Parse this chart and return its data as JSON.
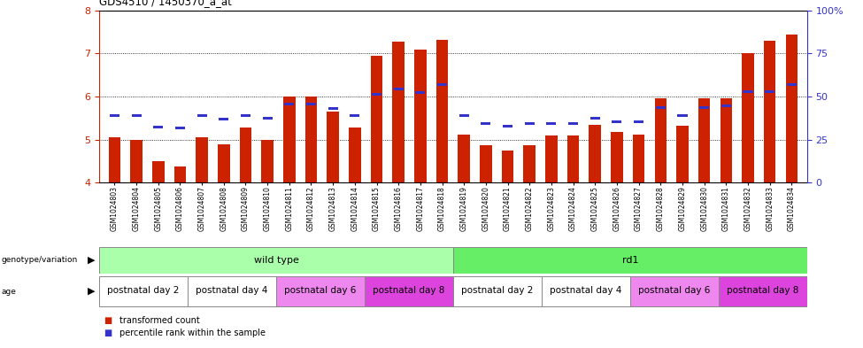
{
  "title": "GDS4510 / 1450370_a_at",
  "samples": [
    "GSM1024803",
    "GSM1024804",
    "GSM1024805",
    "GSM1024806",
    "GSM1024807",
    "GSM1024808",
    "GSM1024809",
    "GSM1024810",
    "GSM1024811",
    "GSM1024812",
    "GSM1024813",
    "GSM1024814",
    "GSM1024815",
    "GSM1024816",
    "GSM1024817",
    "GSM1024818",
    "GSM1024819",
    "GSM1024820",
    "GSM1024821",
    "GSM1024822",
    "GSM1024823",
    "GSM1024824",
    "GSM1024825",
    "GSM1024826",
    "GSM1024827",
    "GSM1024828",
    "GSM1024829",
    "GSM1024830",
    "GSM1024831",
    "GSM1024832",
    "GSM1024833",
    "GSM1024834"
  ],
  "bar_values": [
    5.05,
    5.0,
    4.5,
    4.38,
    5.05,
    4.9,
    5.28,
    5.0,
    6.0,
    6.0,
    5.65,
    5.28,
    6.95,
    7.28,
    7.1,
    7.32,
    5.12,
    4.88,
    4.75,
    4.88,
    5.1,
    5.1,
    5.35,
    5.18,
    5.12,
    5.95,
    5.32,
    5.95,
    5.95,
    7.0,
    7.3,
    7.45
  ],
  "percentile_values": [
    5.55,
    5.55,
    5.3,
    5.28,
    5.55,
    5.48,
    5.55,
    5.5,
    5.82,
    5.82,
    5.72,
    5.55,
    6.05,
    6.18,
    6.1,
    6.27,
    5.55,
    5.38,
    5.32,
    5.38,
    5.38,
    5.38,
    5.5,
    5.42,
    5.42,
    5.75,
    5.55,
    5.75,
    5.78,
    6.12,
    6.12,
    6.27
  ],
  "bar_color": "#CC2200",
  "percentile_color": "#3333CC",
  "ylim_left": [
    4.0,
    8.0
  ],
  "yticks_left": [
    4,
    5,
    6,
    7,
    8
  ],
  "yticks_right": [
    0,
    25,
    50,
    75,
    100
  ],
  "genotype_groups": [
    {
      "label": "wild type",
      "start": 0,
      "end": 16,
      "color": "#AAFFAA"
    },
    {
      "label": "rd1",
      "start": 16,
      "end": 32,
      "color": "#66EE66"
    }
  ],
  "age_groups": [
    {
      "label": "postnatal day 2",
      "start": 0,
      "end": 4,
      "color": "#FFFFFF"
    },
    {
      "label": "postnatal day 4",
      "start": 4,
      "end": 8,
      "color": "#FFFFFF"
    },
    {
      "label": "postnatal day 6",
      "start": 8,
      "end": 12,
      "color": "#EE88EE"
    },
    {
      "label": "postnatal day 8",
      "start": 12,
      "end": 16,
      "color": "#DD44DD"
    },
    {
      "label": "postnatal day 2",
      "start": 16,
      "end": 20,
      "color": "#FFFFFF"
    },
    {
      "label": "postnatal day 4",
      "start": 20,
      "end": 24,
      "color": "#FFFFFF"
    },
    {
      "label": "postnatal day 6",
      "start": 24,
      "end": 28,
      "color": "#EE88EE"
    },
    {
      "label": "postnatal day 8",
      "start": 28,
      "end": 32,
      "color": "#DD44DD"
    }
  ]
}
